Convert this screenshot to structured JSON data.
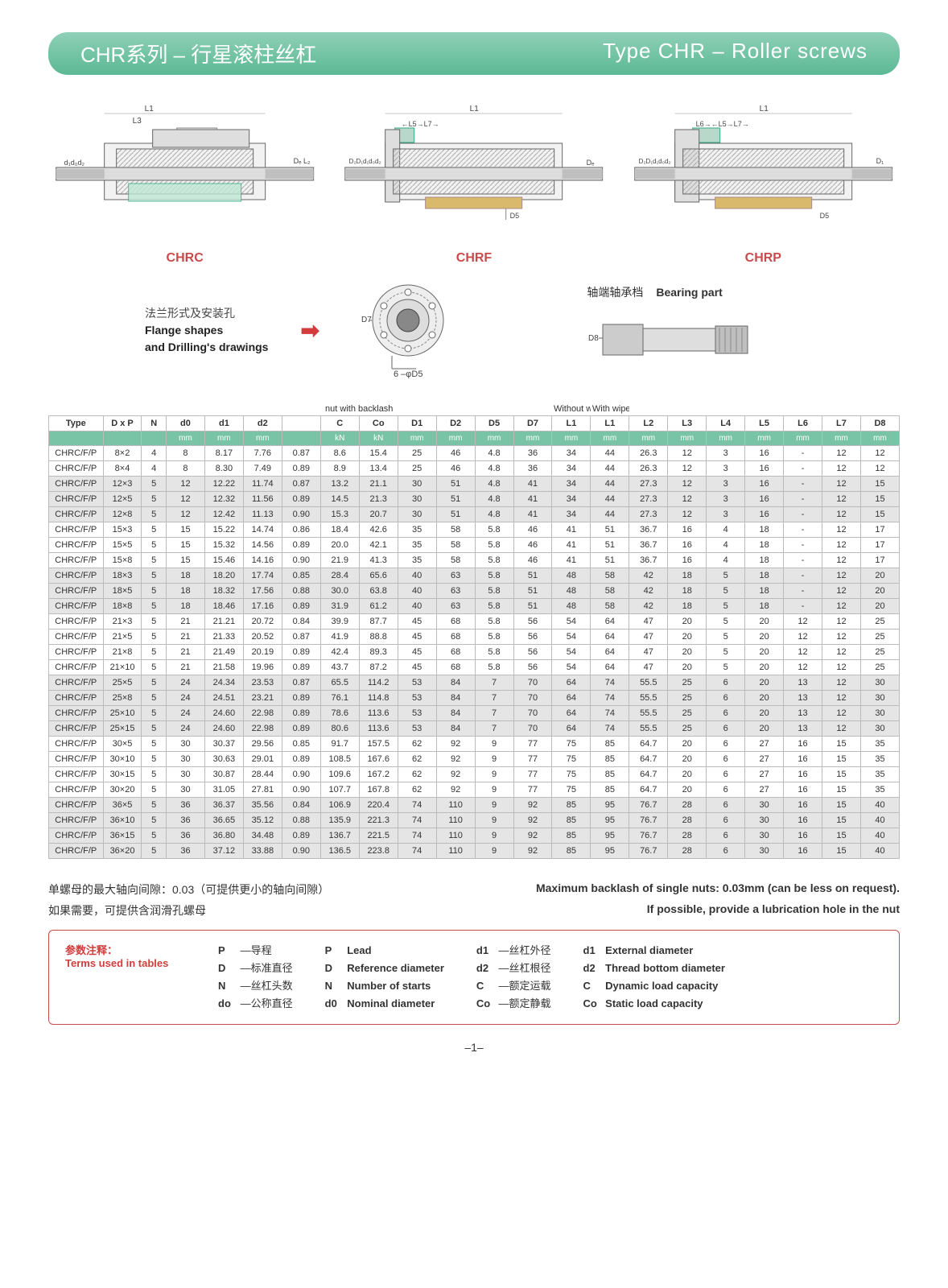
{
  "title": {
    "cn": "CHR系列 – 行星滚柱丝杠",
    "en": "Type CHR – Roller screws"
  },
  "diagram_labels": {
    "chrc": "CHRC",
    "chrf": "CHRF",
    "chrp": "CHRP"
  },
  "dim_labels": {
    "L1": "L1",
    "L3": "L3",
    "L4": "L4",
    "L5": "L5",
    "L7": "L7",
    "L6": "L6",
    "d1": "d₁",
    "d0": "d₀",
    "d2": "d₂",
    "De": "Dₑ",
    "L2": "L₂",
    "D2": "D₂",
    "D1": "D₁",
    "D5": "D5",
    "D7": "D7",
    "D8": "D8",
    "six_phi_d5": "6  –φD5"
  },
  "aux": {
    "flange_cn": "法兰形式及安装孔",
    "flange_en1": "Flange shapes",
    "flange_en2": "and Drilling's drawings",
    "bearing_cn": "轴端轴承档",
    "bearing_en": "Bearing part"
  },
  "table": {
    "group_labels": {
      "nut_backlash": "nut with backlash",
      "without_wipers": "Without  wipers",
      "with_wipers": "With  wipers"
    },
    "columns": [
      "Type",
      "D x P",
      "N",
      "d0",
      "d1",
      "d2",
      "",
      "C",
      "Co",
      "D1",
      "D2",
      "D5",
      "D7",
      "L1",
      "L1",
      "L2",
      "L3",
      "L4",
      "L5",
      "L6",
      "L7",
      "D8"
    ],
    "units": [
      "",
      "",
      "",
      "mm",
      "mm",
      "mm",
      "",
      "kN",
      "kN",
      "mm",
      "mm",
      "mm",
      "mm",
      "mm",
      "mm",
      "mm",
      "mm",
      "mm",
      "mm",
      "mm",
      "mm",
      "mm"
    ],
    "rows": [
      [
        "CHRC/F/P",
        "8×2",
        "4",
        "8",
        "8.17",
        "7.76",
        "0.87",
        "8.6",
        "15.4",
        "25",
        "46",
        "4.8",
        "36",
        "34",
        "44",
        "26.3",
        "12",
        "3",
        "16",
        "-",
        "12",
        "12"
      ],
      [
        "CHRC/F/P",
        "8×4",
        "4",
        "8",
        "8.30",
        "7.49",
        "0.89",
        "8.9",
        "13.4",
        "25",
        "46",
        "4.8",
        "36",
        "34",
        "44",
        "26.3",
        "12",
        "3",
        "16",
        "-",
        "12",
        "12"
      ],
      [
        "CHRC/F/P",
        "12×3",
        "5",
        "12",
        "12.22",
        "11.74",
        "0.87",
        "13.2",
        "21.1",
        "30",
        "51",
        "4.8",
        "41",
        "34",
        "44",
        "27.3",
        "12",
        "3",
        "16",
        "-",
        "12",
        "15"
      ],
      [
        "CHRC/F/P",
        "12×5",
        "5",
        "12",
        "12.32",
        "11.56",
        "0.89",
        "14.5",
        "21.3",
        "30",
        "51",
        "4.8",
        "41",
        "34",
        "44",
        "27.3",
        "12",
        "3",
        "16",
        "-",
        "12",
        "15"
      ],
      [
        "CHRC/F/P",
        "12×8",
        "5",
        "12",
        "12.42",
        "11.13",
        "0.90",
        "15.3",
        "20.7",
        "30",
        "51",
        "4.8",
        "41",
        "34",
        "44",
        "27.3",
        "12",
        "3",
        "16",
        "-",
        "12",
        "15"
      ],
      [
        "CHRC/F/P",
        "15×3",
        "5",
        "15",
        "15.22",
        "14.74",
        "0.86",
        "18.4",
        "42.6",
        "35",
        "58",
        "5.8",
        "46",
        "41",
        "51",
        "36.7",
        "16",
        "4",
        "18",
        "-",
        "12",
        "17"
      ],
      [
        "CHRC/F/P",
        "15×5",
        "5",
        "15",
        "15.32",
        "14.56",
        "0.89",
        "20.0",
        "42.1",
        "35",
        "58",
        "5.8",
        "46",
        "41",
        "51",
        "36.7",
        "16",
        "4",
        "18",
        "-",
        "12",
        "17"
      ],
      [
        "CHRC/F/P",
        "15×8",
        "5",
        "15",
        "15.46",
        "14.16",
        "0.90",
        "21.9",
        "41.3",
        "35",
        "58",
        "5.8",
        "46",
        "41",
        "51",
        "36.7",
        "16",
        "4",
        "18",
        "-",
        "12",
        "17"
      ],
      [
        "CHRC/F/P",
        "18×3",
        "5",
        "18",
        "18.20",
        "17.74",
        "0.85",
        "28.4",
        "65.6",
        "40",
        "63",
        "5.8",
        "51",
        "48",
        "58",
        "42",
        "18",
        "5",
        "18",
        "-",
        "12",
        "20"
      ],
      [
        "CHRC/F/P",
        "18×5",
        "5",
        "18",
        "18.32",
        "17.56",
        "0.88",
        "30.0",
        "63.8",
        "40",
        "63",
        "5.8",
        "51",
        "48",
        "58",
        "42",
        "18",
        "5",
        "18",
        "-",
        "12",
        "20"
      ],
      [
        "CHRC/F/P",
        "18×8",
        "5",
        "18",
        "18.46",
        "17.16",
        "0.89",
        "31.9",
        "61.2",
        "40",
        "63",
        "5.8",
        "51",
        "48",
        "58",
        "42",
        "18",
        "5",
        "18",
        "-",
        "12",
        "20"
      ],
      [
        "CHRC/F/P",
        "21×3",
        "5",
        "21",
        "21.21",
        "20.72",
        "0.84",
        "39.9",
        "87.7",
        "45",
        "68",
        "5.8",
        "56",
        "54",
        "64",
        "47",
        "20",
        "5",
        "20",
        "12",
        "12",
        "25"
      ],
      [
        "CHRC/F/P",
        "21×5",
        "5",
        "21",
        "21.33",
        "20.52",
        "0.87",
        "41.9",
        "88.8",
        "45",
        "68",
        "5.8",
        "56",
        "54",
        "64",
        "47",
        "20",
        "5",
        "20",
        "12",
        "12",
        "25"
      ],
      [
        "CHRC/F/P",
        "21×8",
        "5",
        "21",
        "21.49",
        "20.19",
        "0.89",
        "42.4",
        "89.3",
        "45",
        "68",
        "5.8",
        "56",
        "54",
        "64",
        "47",
        "20",
        "5",
        "20",
        "12",
        "12",
        "25"
      ],
      [
        "CHRC/F/P",
        "21×10",
        "5",
        "21",
        "21.58",
        "19.96",
        "0.89",
        "43.7",
        "87.2",
        "45",
        "68",
        "5.8",
        "56",
        "54",
        "64",
        "47",
        "20",
        "5",
        "20",
        "12",
        "12",
        "25"
      ],
      [
        "CHRC/F/P",
        "25×5",
        "5",
        "24",
        "24.34",
        "23.53",
        "0.87",
        "65.5",
        "114.2",
        "53",
        "84",
        "7",
        "70",
        "64",
        "74",
        "55.5",
        "25",
        "6",
        "20",
        "13",
        "12",
        "30"
      ],
      [
        "CHRC/F/P",
        "25×8",
        "5",
        "24",
        "24.51",
        "23.21",
        "0.89",
        "76.1",
        "114.8",
        "53",
        "84",
        "7",
        "70",
        "64",
        "74",
        "55.5",
        "25",
        "6",
        "20",
        "13",
        "12",
        "30"
      ],
      [
        "CHRC/F/P",
        "25×10",
        "5",
        "24",
        "24.60",
        "22.98",
        "0.89",
        "78.6",
        "113.6",
        "53",
        "84",
        "7",
        "70",
        "64",
        "74",
        "55.5",
        "25",
        "6",
        "20",
        "13",
        "12",
        "30"
      ],
      [
        "CHRC/F/P",
        "25×15",
        "5",
        "24",
        "24.60",
        "22.98",
        "0.89",
        "80.6",
        "113.6",
        "53",
        "84",
        "7",
        "70",
        "64",
        "74",
        "55.5",
        "25",
        "6",
        "20",
        "13",
        "12",
        "30"
      ],
      [
        "CHRC/F/P",
        "30×5",
        "5",
        "30",
        "30.37",
        "29.56",
        "0.85",
        "91.7",
        "157.5",
        "62",
        "92",
        "9",
        "77",
        "75",
        "85",
        "64.7",
        "20",
        "6",
        "27",
        "16",
        "15",
        "35"
      ],
      [
        "CHRC/F/P",
        "30×10",
        "5",
        "30",
        "30.63",
        "29.01",
        "0.89",
        "108.5",
        "167.6",
        "62",
        "92",
        "9",
        "77",
        "75",
        "85",
        "64.7",
        "20",
        "6",
        "27",
        "16",
        "15",
        "35"
      ],
      [
        "CHRC/F/P",
        "30×15",
        "5",
        "30",
        "30.87",
        "28.44",
        "0.90",
        "109.6",
        "167.2",
        "62",
        "92",
        "9",
        "77",
        "75",
        "85",
        "64.7",
        "20",
        "6",
        "27",
        "16",
        "15",
        "35"
      ],
      [
        "CHRC/F/P",
        "30×20",
        "5",
        "30",
        "31.05",
        "27.81",
        "0.90",
        "107.7",
        "167.8",
        "62",
        "92",
        "9",
        "77",
        "75",
        "85",
        "64.7",
        "20",
        "6",
        "27",
        "16",
        "15",
        "35"
      ],
      [
        "CHRC/F/P",
        "36×5",
        "5",
        "36",
        "36.37",
        "35.56",
        "0.84",
        "106.9",
        "220.4",
        "74",
        "110",
        "9",
        "92",
        "85",
        "95",
        "76.7",
        "28",
        "6",
        "30",
        "16",
        "15",
        "40"
      ],
      [
        "CHRC/F/P",
        "36×10",
        "5",
        "36",
        "36.65",
        "35.12",
        "0.88",
        "135.9",
        "221.3",
        "74",
        "110",
        "9",
        "92",
        "85",
        "95",
        "76.7",
        "28",
        "6",
        "30",
        "16",
        "15",
        "40"
      ],
      [
        "CHRC/F/P",
        "36×15",
        "5",
        "36",
        "36.80",
        "34.48",
        "0.89",
        "136.7",
        "221.5",
        "74",
        "110",
        "9",
        "92",
        "85",
        "95",
        "76.7",
        "28",
        "6",
        "30",
        "16",
        "15",
        "40"
      ],
      [
        "CHRC/F/P",
        "36×20",
        "5",
        "36",
        "37.12",
        "33.88",
        "0.90",
        "136.5",
        "223.8",
        "74",
        "110",
        "9",
        "92",
        "85",
        "95",
        "76.7",
        "28",
        "6",
        "30",
        "16",
        "15",
        "40"
      ]
    ],
    "row_bands": [
      0,
      0,
      1,
      1,
      1,
      0,
      0,
      0,
      1,
      1,
      1,
      0,
      0,
      0,
      0,
      1,
      1,
      1,
      1,
      0,
      0,
      0,
      0,
      1,
      1,
      1,
      1
    ]
  },
  "footnotes": {
    "cn1": "单螺母的最大轴向间隙：0.03（可提供更小的轴向间隙）",
    "cn2": "如果需要，可提供含润滑孔螺母",
    "en1": "Maximum backlash of single nuts: 0.03mm (can be less on request).",
    "en2": "If possible, provide a lubrication hole in the nut"
  },
  "terms": {
    "title_cn": "参数注释：",
    "title_en": "Terms used in tables",
    "col1": [
      {
        "sym": "P",
        "txt": "—导程"
      },
      {
        "sym": "D",
        "txt": "—标准直径"
      },
      {
        "sym": "N",
        "txt": "—丝杠头数"
      },
      {
        "sym": "do",
        "txt": "—公称直径"
      }
    ],
    "col2": [
      {
        "sym": "P",
        "txt": "Lead"
      },
      {
        "sym": "D",
        "txt": "Reference diameter"
      },
      {
        "sym": "N",
        "txt": "Number of starts"
      },
      {
        "sym": "d0",
        "txt": "Nominal diameter"
      }
    ],
    "col3": [
      {
        "sym": "d1",
        "txt": "—丝杠外径"
      },
      {
        "sym": "d2",
        "txt": "—丝杠根径"
      },
      {
        "sym": "C",
        "txt": "—额定运载"
      },
      {
        "sym": "Co",
        "txt": "—额定静载"
      }
    ],
    "col4": [
      {
        "sym": "d1",
        "txt": "External diameter"
      },
      {
        "sym": "d2",
        "txt": "Thread bottom diameter"
      },
      {
        "sym": "C",
        "txt": "Dynamic load capacity"
      },
      {
        "sym": "Co",
        "txt": "Static load capacity"
      }
    ]
  },
  "page_number": "–1–",
  "colors": {
    "accent": "#79c4a6",
    "title_grad_top": "#8fd0b8",
    "title_grad_bot": "#5bb894",
    "red": "#d23c3c",
    "label_red": "#c94a4a",
    "border": "#bbb"
  }
}
